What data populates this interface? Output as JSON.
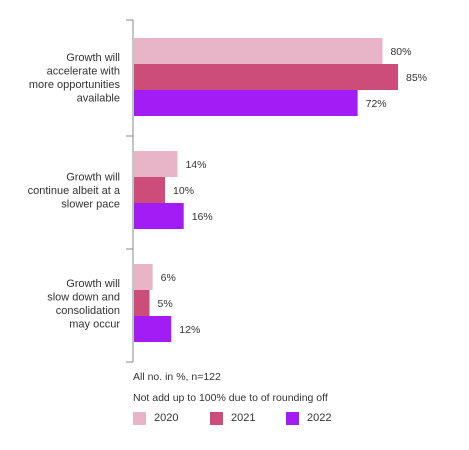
{
  "chart_data": {
    "type": "bar",
    "orientation": "horizontal",
    "categories": [
      [
        "Growth will",
        "accelerate with",
        "more opportunities",
        "available"
      ],
      [
        "Growth will",
        "continue albeit at a",
        "slower pace"
      ],
      [
        "Growth will",
        "slow down and",
        "consolidation",
        "may occur"
      ]
    ],
    "series": [
      {
        "name": "2020",
        "values": [
          80,
          14,
          6
        ],
        "color": "#e8b4c8"
      },
      {
        "name": "2021",
        "values": [
          85,
          10,
          5
        ],
        "color": "#cc4c7a"
      },
      {
        "name": "2022",
        "values": [
          72,
          16,
          12
        ],
        "color": "#a11cf5"
      }
    ],
    "value_suffix": "%",
    "xlim": [
      0,
      100
    ],
    "grid": false,
    "legend_position": "bottom"
  },
  "notes": {
    "line1": "All no. in %, n=122",
    "line2": "Not add up to 100% due to of rounding off"
  },
  "legend": [
    {
      "label": "2020",
      "color": "#e8b4c8"
    },
    {
      "label": "2021",
      "color": "#cc4c7a"
    },
    {
      "label": "2022",
      "color": "#a11cf5"
    }
  ],
  "colors": {
    "axis": "#888888",
    "text": "#333333"
  }
}
